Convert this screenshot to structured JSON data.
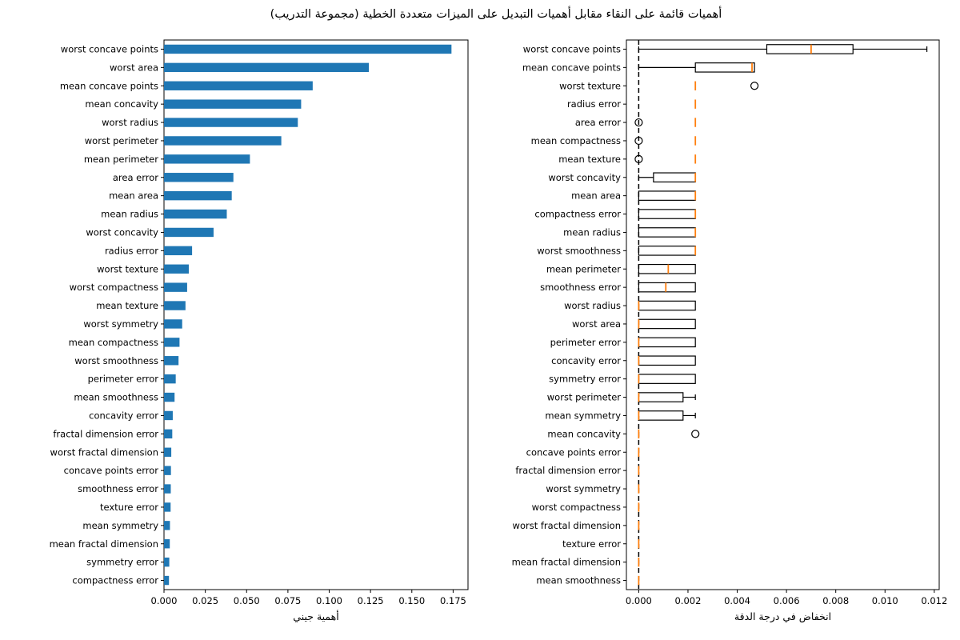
{
  "figure": {
    "title": "أهميات قائمة على النقاء مقابل أهميات التبديل على الميزات متعددة الخطية (مجموعة التدريب)"
  },
  "chart_data": [
    {
      "type": "bar",
      "orientation": "horizontal",
      "xlabel": "أهمية جيني",
      "xlim": [
        0,
        0.184
      ],
      "xticks": [
        0,
        0.025,
        0.05,
        0.075,
        0.1,
        0.125,
        0.15,
        0.175
      ],
      "xtick_labels": [
        "0.000",
        "0.025",
        "0.050",
        "0.075",
        "0.100",
        "0.125",
        "0.150",
        "0.175"
      ],
      "bar_color": "#1f77b4",
      "grid": false,
      "categories": [
        "worst concave points",
        "worst area",
        "mean concave points",
        "mean concavity",
        "worst radius",
        "worst perimeter",
        "mean perimeter",
        "area error",
        "mean area",
        "mean radius",
        "worst concavity",
        "radius error",
        "worst texture",
        "worst compactness",
        "mean texture",
        "worst symmetry",
        "mean compactness",
        "worst smoothness",
        "perimeter error",
        "mean smoothness",
        "concavity error",
        "fractal dimension error",
        "worst fractal dimension",
        "concave points error",
        "smoothness error",
        "texture error",
        "mean symmetry",
        "mean fractal dimension",
        "symmetry error",
        "compactness error"
      ],
      "values": [
        0.174,
        0.124,
        0.09,
        0.083,
        0.081,
        0.071,
        0.052,
        0.042,
        0.041,
        0.038,
        0.03,
        0.017,
        0.015,
        0.014,
        0.013,
        0.011,
        0.0094,
        0.0088,
        0.0071,
        0.0064,
        0.0053,
        0.005,
        0.0044,
        0.0042,
        0.0041,
        0.004,
        0.0036,
        0.0035,
        0.0032,
        0.003
      ]
    },
    {
      "type": "boxplot",
      "orientation": "horizontal",
      "xlabel": "انخفاض في درجة الدقة",
      "xlim": [
        -0.0005,
        0.0122
      ],
      "xticks": [
        0,
        0.002,
        0.004,
        0.006,
        0.008,
        0.01,
        0.012
      ],
      "xtick_labels": [
        "0.000",
        "0.002",
        "0.004",
        "0.006",
        "0.008",
        "0.010",
        "0.012"
      ],
      "box_color": "#000000",
      "median_color": "#ff7f0e",
      "zero_line": {
        "x": 0,
        "style": "dashed",
        "color": "#000000"
      },
      "boxes": [
        {
          "label": "worst concave points",
          "whislo": 0.0,
          "q1": 0.0052,
          "med": 0.007,
          "q3": 0.0087,
          "whishi": 0.0117,
          "fliers": []
        },
        {
          "label": "mean concave points",
          "whislo": 0.0,
          "q1": 0.0023,
          "med": 0.0046,
          "q3": 0.0047,
          "whishi": 0.0047,
          "fliers": []
        },
        {
          "label": "worst texture",
          "whislo": 0.0023,
          "q1": 0.0023,
          "med": 0.0023,
          "q3": 0.0023,
          "whishi": 0.0023,
          "fliers": [
            0.0047
          ]
        },
        {
          "label": "radius error",
          "whislo": 0.0023,
          "q1": 0.0023,
          "med": 0.0023,
          "q3": 0.0023,
          "whishi": 0.0023,
          "fliers": []
        },
        {
          "label": "area error",
          "whislo": 0.0023,
          "q1": 0.0023,
          "med": 0.0023,
          "q3": 0.0023,
          "whishi": 0.0023,
          "fliers": [
            0.0
          ]
        },
        {
          "label": "mean compactness",
          "whislo": 0.0023,
          "q1": 0.0023,
          "med": 0.0023,
          "q3": 0.0023,
          "whishi": 0.0023,
          "fliers": [
            0.0
          ]
        },
        {
          "label": "mean texture",
          "whislo": 0.0023,
          "q1": 0.0023,
          "med": 0.0023,
          "q3": 0.0023,
          "whishi": 0.0023,
          "fliers": [
            0.0
          ]
        },
        {
          "label": "worst concavity",
          "whislo": 0.0,
          "q1": 0.0006,
          "med": 0.0023,
          "q3": 0.0023,
          "whishi": 0.0023,
          "fliers": []
        },
        {
          "label": "mean area",
          "whislo": 0.0,
          "q1": 0.0,
          "med": 0.0023,
          "q3": 0.0023,
          "whishi": 0.0023,
          "fliers": []
        },
        {
          "label": "compactness error",
          "whislo": 0.0,
          "q1": 0.0,
          "med": 0.0023,
          "q3": 0.0023,
          "whishi": 0.0023,
          "fliers": []
        },
        {
          "label": "mean radius",
          "whislo": 0.0,
          "q1": 0.0,
          "med": 0.0023,
          "q3": 0.0023,
          "whishi": 0.0023,
          "fliers": []
        },
        {
          "label": "worst smoothness",
          "whislo": 0.0,
          "q1": 0.0,
          "med": 0.0023,
          "q3": 0.0023,
          "whishi": 0.0023,
          "fliers": []
        },
        {
          "label": "mean perimeter",
          "whislo": 0.0,
          "q1": 0.0,
          "med": 0.0012,
          "q3": 0.0023,
          "whishi": 0.0023,
          "fliers": []
        },
        {
          "label": "smoothness error",
          "whislo": 0.0,
          "q1": 0.0,
          "med": 0.0011,
          "q3": 0.0023,
          "whishi": 0.0023,
          "fliers": []
        },
        {
          "label": "worst radius",
          "whislo": 0.0,
          "q1": 0.0,
          "med": 0.0,
          "q3": 0.0023,
          "whishi": 0.0023,
          "fliers": []
        },
        {
          "label": "worst area",
          "whislo": 0.0,
          "q1": 0.0,
          "med": 0.0,
          "q3": 0.0023,
          "whishi": 0.0023,
          "fliers": []
        },
        {
          "label": "perimeter error",
          "whislo": 0.0,
          "q1": 0.0,
          "med": 0.0,
          "q3": 0.0023,
          "whishi": 0.0023,
          "fliers": []
        },
        {
          "label": "concavity error",
          "whislo": 0.0,
          "q1": 0.0,
          "med": 0.0,
          "q3": 0.0023,
          "whishi": 0.0023,
          "fliers": []
        },
        {
          "label": "symmetry error",
          "whislo": 0.0,
          "q1": 0.0,
          "med": 0.0,
          "q3": 0.0023,
          "whishi": 0.0023,
          "fliers": []
        },
        {
          "label": "worst perimeter",
          "whislo": 0.0,
          "q1": 0.0,
          "med": 0.0,
          "q3": 0.0018,
          "whishi": 0.0023,
          "fliers": []
        },
        {
          "label": "mean symmetry",
          "whislo": 0.0,
          "q1": 0.0,
          "med": 0.0,
          "q3": 0.0018,
          "whishi": 0.0023,
          "fliers": []
        },
        {
          "label": "mean concavity",
          "whislo": 0.0,
          "q1": 0.0,
          "med": 0.0,
          "q3": 0.0,
          "whishi": 0.0,
          "fliers": [
            0.0023
          ]
        },
        {
          "label": "concave points error",
          "whislo": 0.0,
          "q1": 0.0,
          "med": 0.0,
          "q3": 0.0,
          "whishi": 0.0,
          "fliers": []
        },
        {
          "label": "fractal dimension error",
          "whislo": 0.0,
          "q1": 0.0,
          "med": 0.0,
          "q3": 0.0,
          "whishi": 0.0,
          "fliers": []
        },
        {
          "label": "worst symmetry",
          "whislo": 0.0,
          "q1": 0.0,
          "med": 0.0,
          "q3": 0.0,
          "whishi": 0.0,
          "fliers": []
        },
        {
          "label": "worst compactness",
          "whislo": 0.0,
          "q1": 0.0,
          "med": 0.0,
          "q3": 0.0,
          "whishi": 0.0,
          "fliers": []
        },
        {
          "label": "worst fractal dimension",
          "whislo": 0.0,
          "q1": 0.0,
          "med": 0.0,
          "q3": 0.0,
          "whishi": 0.0,
          "fliers": []
        },
        {
          "label": "texture error",
          "whislo": 0.0,
          "q1": 0.0,
          "med": 0.0,
          "q3": 0.0,
          "whishi": 0.0,
          "fliers": []
        },
        {
          "label": "mean fractal dimension",
          "whislo": 0.0,
          "q1": 0.0,
          "med": 0.0,
          "q3": 0.0,
          "whishi": 0.0,
          "fliers": []
        },
        {
          "label": "mean smoothness",
          "whislo": 0.0,
          "q1": 0.0,
          "med": 0.0,
          "q3": 0.0,
          "whishi": 0.0,
          "fliers": []
        }
      ]
    }
  ]
}
